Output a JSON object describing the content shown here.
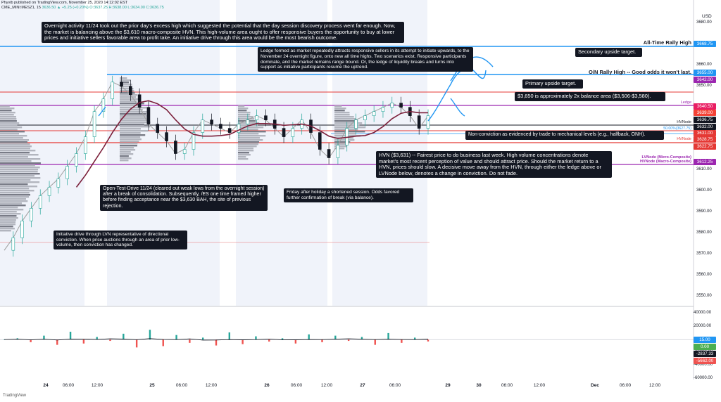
{
  "header": {
    "line1": "Phyvib published on TradingView.com, November 25, 2020 14:12:02 EST",
    "symbol": "CME_MINI:MESZ1, 15",
    "ohlc": "3636.50 ▲ +5.25 (+0.20%) O:3637.25 H:3638.00 L:3634.00 C:3636.75"
  },
  "axis": {
    "currency": "USD",
    "price_labels": [
      "3680.00",
      "3670.00",
      "3660.00",
      "3650.00",
      "3640.00",
      "3630.00",
      "3620.00",
      "3610.00",
      "3600.00",
      "3590.00",
      "3580.00",
      "3570.00",
      "3560.00",
      "3550.00"
    ],
    "osc_labels": [
      "40000.00",
      "20000.00",
      "-20000.00",
      "-40000.00",
      "-60000.00"
    ],
    "x_labels": [
      "24",
      "06:00",
      "12:00",
      "25",
      "06:00",
      "12:00",
      "26",
      "06:00",
      "12:00",
      "27",
      "06:00",
      "29",
      "30",
      "06:00",
      "12:00",
      "Dec",
      "06:00",
      "12:00"
    ]
  },
  "pills": [
    {
      "text": "3668.75",
      "color": "#2196f3",
      "price": 3668.75
    },
    {
      "text": "3655.00",
      "color": "#2196f3",
      "price": 3655.0
    },
    {
      "text": "3642.00",
      "color": "#9c27b0",
      "price": 3642.0
    },
    {
      "text": "3640.50",
      "color": "#e91e63",
      "price": 3640.5
    },
    {
      "text": "3639.00",
      "color": "#f44336",
      "price": 3639.0
    },
    {
      "text": "3636.75",
      "color": "#131722",
      "price": 3636.75
    },
    {
      "text": "3632.00",
      "color": "#131722",
      "price": 3632.0
    },
    {
      "text": "3631.00",
      "color": "#e53935",
      "price": 3631.0
    },
    {
      "text": "3628.75",
      "color": "#e53935",
      "price": 3628.75
    },
    {
      "text": "3622.75",
      "color": "#e53935",
      "price": 3622.75
    },
    {
      "text": "3612.25",
      "color": "#9c27b0",
      "price": 3612.25
    }
  ],
  "osc_pills": [
    {
      "text": "15.00",
      "color": "#2196f3",
      "value": 15
    },
    {
      "text": "0.00",
      "color": "#4caf50",
      "value": 0
    },
    {
      "text": "-2837.33",
      "color": "#131722",
      "value": -2837.33
    },
    {
      "text": "-5662.00",
      "color": "#ef5350",
      "value": -5662
    }
  ],
  "price_labels": {
    "ath": "All-Time Rally High",
    "onh": "O/N Rally High -- Good odds it won't last.",
    "ledge": "Ledge",
    "hvnode1": "HVNode",
    "hvnode2": "HVNode",
    "halfback": "50.00%(3627.75)",
    "lvnode": "LVNode (Micro-Composite)",
    "hvnode_mc": "HVNode (Macro-Composite)"
  },
  "notes": {
    "top": "Overnight activity 11/24 took out the prior day's excess high which suggested the potential that the day session discovery process went far enough. Now, the market is balancing above the $3,610 macro-composite HVN. This high-volume area ought to offer responsive buyers the opportunity to buy at lower prices and initiative sellers favorable area to profit take. An initiative drive through this area would be the most bearish outcome.",
    "ledge": "Ledge formed as market repeatedly attracts responsive sellers in its attempt to initiate upwards, to the November 24 overnight figure, onto new all time highs. Two scenarios exist. Responsive participants dominate, and the market remains range bound. Or, the ledge of liquidity breaks and turns into support as initiative participants resume the uptrend.",
    "secondary": "Secondary upside target.",
    "primary": "Primary upside target.",
    "balance": "$3,650 is approximately 2x balance area ($3,506-$3,580).",
    "nonconv": "Non-conviction as evidenced by trade to mechanical levels (e.g., halfback, ONH).",
    "hvn": "HVN ($3,631) -- Fairest price to do business last week. High volume concentrations denote market's most recent perception of value and should attract price. Should the market return to a HVN, prices should slow. A decisive move away from the HVN, through either the ledge above or LVNode below, denotes a change in conviction. Do not fade.",
    "otd": "Open-Test-Drive 11/24 (cleared out weak lows from the overnight session) after a break of consolidation. Subsequently, /ES one time framed higher before finding acceptance near the $3,630 BAH, the site of previous rejection.",
    "friday": "Friday after holiday a shortened session. Odds favored further confirmation of break (via balance).",
    "initiative": "Initiative drive through LVN representative of directional conviction. When price auctions through an area of prior low-volume, then conviction has changed."
  },
  "brand": "TradingView",
  "chart_data": {
    "type": "line",
    "title": "",
    "xlabel": "",
    "ylabel": "USD",
    "ylim": [
      3545,
      3685
    ],
    "sessions": [
      "24",
      "25",
      "26",
      "27"
    ],
    "series": [
      {
        "values": [
          3572,
          3578,
          3586,
          3592,
          3598,
          3602,
          3606,
          3612,
          3618,
          3626,
          3638,
          3644,
          3652,
          3650,
          3646,
          3640,
          3632,
          3628,
          3624,
          3618,
          3620,
          3628,
          3634,
          3632,
          3630,
          3628,
          3632,
          3634,
          3636,
          3634,
          3630,
          3626,
          3630,
          3634,
          3628,
          3620,
          3616,
          3622,
          3630,
          3634,
          3636,
          3638,
          3640,
          3642,
          3640,
          3636,
          3630,
          3636
        ]
      }
    ],
    "levels": [
      {
        "name": "All-Time Rally High",
        "price": 3668.75
      },
      {
        "name": "O/N Rally High",
        "price": 3655.0
      },
      {
        "name": "Ledge",
        "price": 3642.0
      },
      {
        "name": "HVNode",
        "price": 3636.75
      },
      {
        "name": "HVNode",
        "price": 3628.75
      },
      {
        "name": "LVNode (Micro-Composite)",
        "price": 3612.25
      }
    ],
    "oscillator": {
      "ylim": [
        -65000,
        45000
      ],
      "values": [
        0,
        2000,
        -4000,
        6000,
        -8000,
        12000,
        -6000,
        4000,
        -2000,
        9000,
        -12000,
        15000,
        -10000,
        7000,
        -5000,
        3000,
        -9000,
        11000,
        -7000,
        5000,
        -3000,
        2000,
        -6000,
        8000,
        -4000,
        6000,
        -2000,
        4000,
        -8000,
        10000,
        -5000,
        3000,
        -2837
      ]
    }
  }
}
